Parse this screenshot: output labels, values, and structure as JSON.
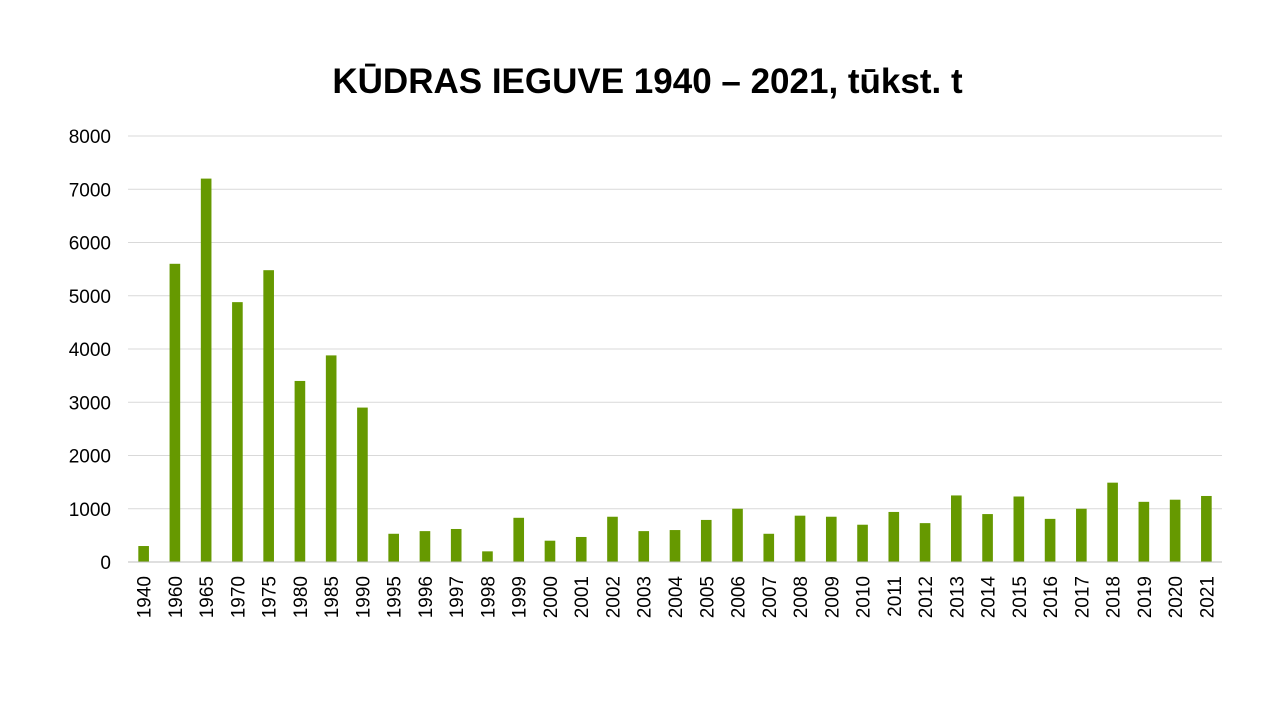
{
  "chart_data": {
    "type": "bar",
    "title": "KŪDRAS IEGUVE 1940 – 2021, tūkst. t",
    "xlabel": "",
    "ylabel": "",
    "ylim": [
      0,
      8000
    ],
    "yticks": [
      "0",
      "1000",
      "2000",
      "3000",
      "4000",
      "5000",
      "6000",
      "7000",
      "8000"
    ],
    "grid": true,
    "legend": "none",
    "bar_color": "#669900",
    "grid_color": "#d9d9d9",
    "categories": [
      "1940",
      "1960",
      "1965",
      "1970",
      "1975",
      "1980",
      "1985",
      "1990",
      "1995",
      "1996",
      "1997",
      "1998",
      "1999",
      "2000",
      "2001",
      "2002",
      "2003",
      "2004",
      "2005",
      "2006",
      "2007",
      "2008",
      "2009",
      "2010",
      "2011",
      "2012",
      "2013",
      "2014",
      "2015",
      "2016",
      "2017",
      "2018",
      "2019",
      "2020",
      "2021"
    ],
    "values": [
      300,
      5600,
      7200,
      4880,
      5480,
      3400,
      3880,
      2900,
      530,
      580,
      620,
      200,
      830,
      400,
      470,
      850,
      580,
      600,
      790,
      1000,
      530,
      870,
      850,
      700,
      940,
      730,
      1250,
      900,
      1230,
      810,
      1000,
      1490,
      1130,
      1170,
      1240
    ]
  }
}
